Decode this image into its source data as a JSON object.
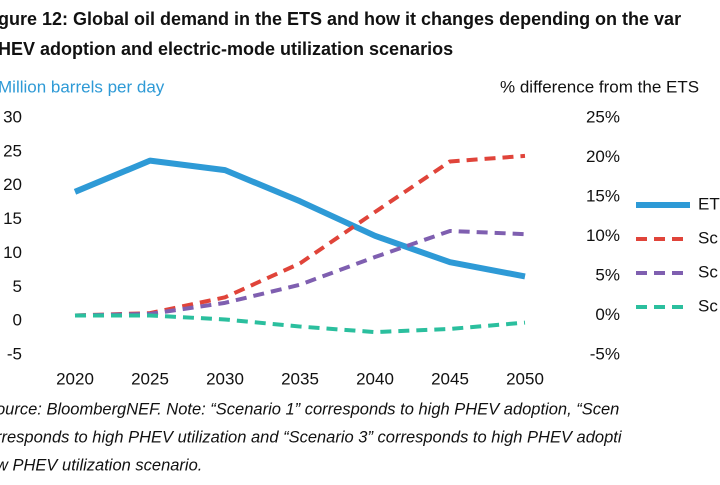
{
  "chart_data": {
    "type": "line",
    "title": "gure 12: Global oil demand in the ETS and how it changes depending on the var",
    "subtitle": "HEV adoption and electric-mode utilization scenarios",
    "ylabel": "Million barrels per day",
    "y2label": "% difference from the ETS",
    "categories": [
      "2020",
      "2025",
      "2030",
      "2035",
      "2040",
      "2045",
      "2050"
    ],
    "series": [
      {
        "name": "ET",
        "color": "#2e9ad6",
        "dash": false,
        "values": [
          19.1,
          23.7,
          22.3,
          17.7,
          12.6,
          8.7,
          6.6
        ]
      },
      {
        "name": "Sc",
        "color": "#e0443a",
        "dash": true,
        "axis": "y2",
        "values": [
          0,
          0.3,
          2.3,
          6.6,
          13.1,
          19.5,
          20.2
        ]
      },
      {
        "name": "Sc",
        "color": "#7f5fb0",
        "dash": true,
        "axis": "y2",
        "values": [
          0,
          0.2,
          1.6,
          3.9,
          7.4,
          10.7,
          10.3
        ]
      },
      {
        "name": "Sc",
        "color": "#2bbf9e",
        "dash": true,
        "axis": "y2",
        "values": [
          0,
          0,
          -0.5,
          -1.4,
          -2.1,
          -1.7,
          -0.9
        ]
      }
    ],
    "ylim": [
      -5,
      30
    ],
    "yticks": [
      -5,
      0,
      5,
      10,
      15,
      20,
      25,
      30
    ],
    "y2lim": [
      -5,
      25
    ],
    "y2ticks": [
      {
        "value": -5,
        "label": "-5%"
      },
      {
        "value": 0,
        "label": "0%"
      },
      {
        "value": 5,
        "label": "5%"
      },
      {
        "value": 10,
        "label": "10%"
      },
      {
        "value": 15,
        "label": "15%"
      },
      {
        "value": 20,
        "label": "20%"
      },
      {
        "value": 25,
        "label": "25%"
      }
    ],
    "grid": false,
    "source": [
      "ource: BloombergNEF. Note: “Scenario 1” corresponds to high PHEV adoption, “Scen",
      "rresponds to high PHEV utilization and “Scenario 3” corresponds to high PHEV adopti",
      "w PHEV utilization scenario."
    ]
  }
}
